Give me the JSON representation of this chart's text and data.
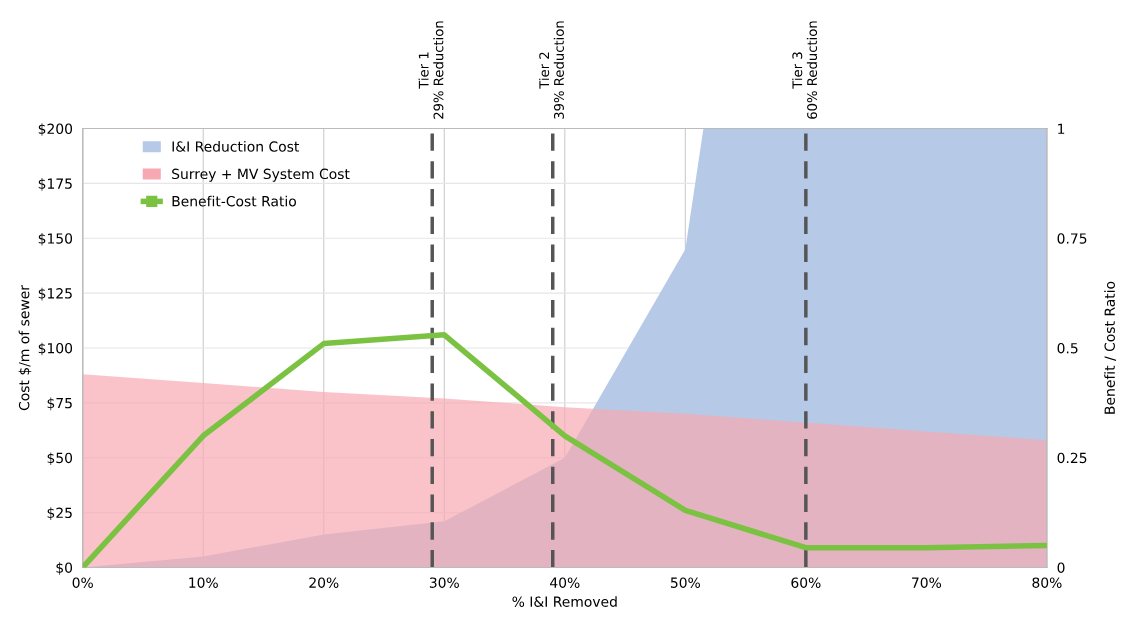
{
  "chart_data": {
    "type": "area",
    "xlabel": "% I&I Removed",
    "ylabel": "Cost $/m of sewer",
    "y2label": "Benefit / Cost Ratio",
    "x": [
      0,
      10,
      20,
      30,
      40,
      50,
      60,
      70,
      80
    ],
    "series": [
      {
        "name": "I&I Reduction Cost",
        "type": "area",
        "color": "#b6cae8",
        "x": [
          0,
          10,
          20,
          30,
          40,
          50,
          51.5,
          60,
          70,
          80
        ],
        "values": [
          0,
          5,
          15,
          21,
          50,
          145,
          200,
          200,
          200,
          200
        ]
      },
      {
        "name": "Surrey + MV System Cost",
        "color": "#f6a9b2",
        "values": [
          88,
          84,
          80,
          77,
          73,
          70,
          66,
          62,
          58
        ]
      },
      {
        "name": "Benefit-Cost Ratio",
        "type": "line",
        "axis": "y2",
        "color": "#7cc242",
        "values": [
          0,
          0.3,
          0.51,
          0.53,
          0.3,
          0.13,
          0.045,
          0.045,
          0.05
        ]
      }
    ],
    "xlim": [
      0,
      80
    ],
    "xticks": [
      {
        "value": 0,
        "label": "0%"
      },
      {
        "value": 10,
        "label": "10%"
      },
      {
        "value": 20,
        "label": "20%"
      },
      {
        "value": 30,
        "label": "30%"
      },
      {
        "value": 40,
        "label": "40%"
      },
      {
        "value": 50,
        "label": "50%"
      },
      {
        "value": 60,
        "label": "60%"
      },
      {
        "value": 70,
        "label": "70%"
      },
      {
        "value": 80,
        "label": "80%"
      }
    ],
    "ylim": [
      0,
      200
    ],
    "yticks": [
      {
        "value": 0,
        "label": "$0"
      },
      {
        "value": 25,
        "label": "$25"
      },
      {
        "value": 50,
        "label": "$50"
      },
      {
        "value": 75,
        "label": "$75"
      },
      {
        "value": 100,
        "label": "$100"
      },
      {
        "value": 125,
        "label": "$125"
      },
      {
        "value": 150,
        "label": "$150"
      },
      {
        "value": 175,
        "label": "$175"
      },
      {
        "value": 200,
        "label": "$200"
      }
    ],
    "y2lim": [
      0,
      1
    ],
    "y2ticks": [
      0,
      0.25,
      0.5,
      0.75,
      1
    ],
    "ref_lines": [
      {
        "axis": "x",
        "value": 29,
        "label": "Tier 1\n29% Reduction",
        "color": "#555555",
        "line_style": "dashed"
      },
      {
        "axis": "x",
        "value": 39,
        "label": "Tier 2\n39% Reduction",
        "color": "#555555",
        "line_style": "dashed"
      },
      {
        "axis": "x",
        "value": 60,
        "label": "Tier 3\n60% Reduction",
        "color": "#555555",
        "line_style": "dashed"
      }
    ],
    "grid": true,
    "legend": "top left",
    "line_style": "solid"
  }
}
